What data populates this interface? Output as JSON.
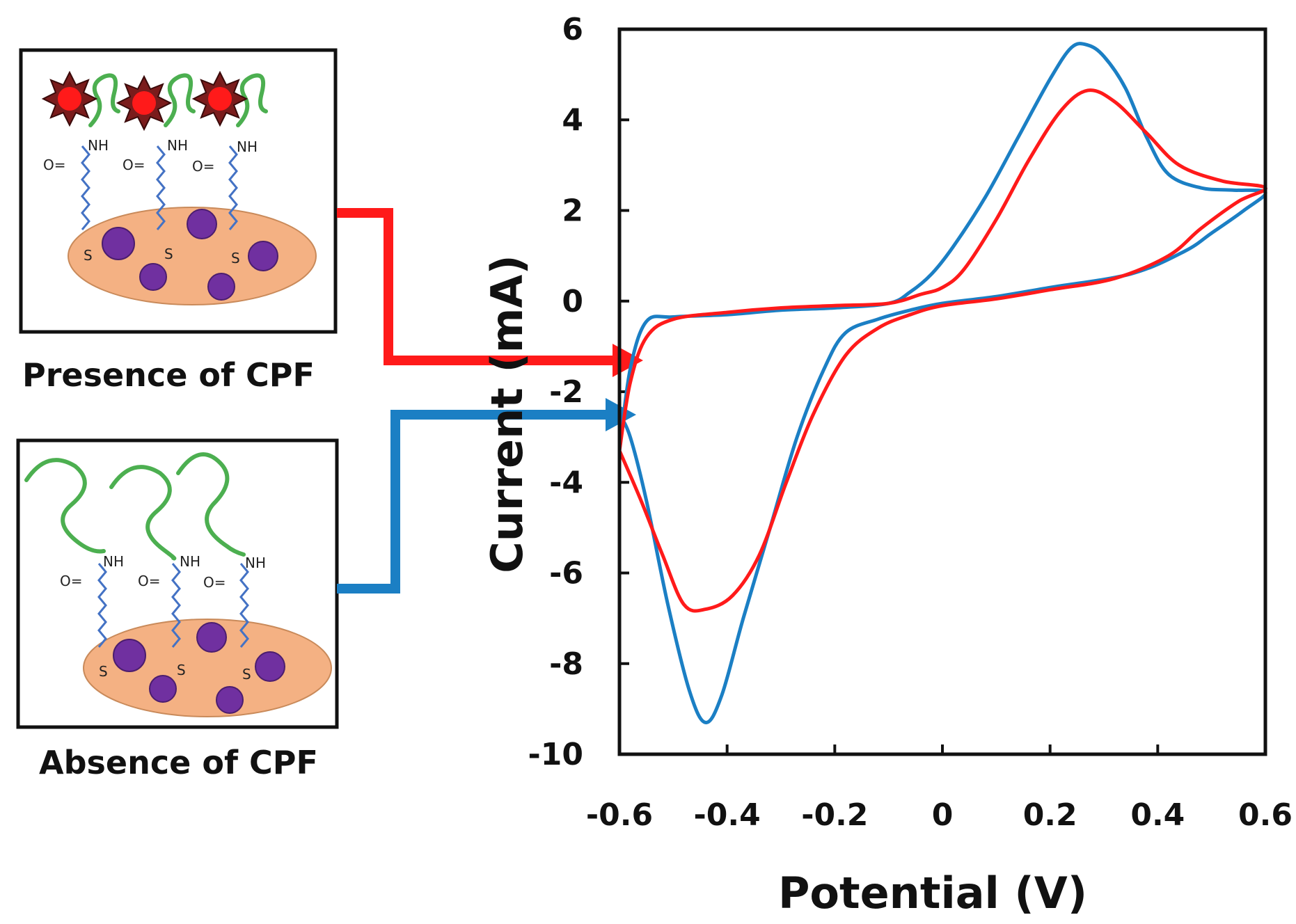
{
  "panels": {
    "presence": {
      "caption": "Presence of CPF",
      "nh": "NH",
      "o": "O=",
      "s": "S"
    },
    "absence": {
      "caption": "Absence of CPF",
      "nh": "NH",
      "o": "O=",
      "s": "S"
    }
  },
  "colors": {
    "presence_red": "#ff1a1a",
    "absence_blue": "#1b7fc4",
    "particle": "#f4b183",
    "cluster": "#7030a0",
    "strand": "#4caf50",
    "linker": "#4472c4"
  },
  "chart_data": {
    "type": "line",
    "title": "",
    "xlabel": "Potential (V)",
    "ylabel": "Current (mA)",
    "xlim": [
      -0.6,
      0.6
    ],
    "ylim": [
      -10,
      6
    ],
    "xticks": [
      -0.6,
      -0.4,
      -0.2,
      0,
      0.2,
      0.4,
      0.6
    ],
    "xtick_labels": [
      "-0.6",
      "-0.4",
      "-0.2",
      "0",
      "0.2",
      "0.4",
      "0.6"
    ],
    "yticks": [
      6,
      4,
      2,
      0,
      -2,
      -4,
      -6,
      -8,
      -10
    ],
    "ytick_labels": [
      "6",
      "4",
      "2",
      "0",
      "-2",
      "-4",
      "-6",
      "-8",
      "-10"
    ],
    "grid": false,
    "series": [
      {
        "name": "Absence of CPF",
        "color": "#1b7fc4",
        "points": [
          [
            -0.6,
            -3.3
          ],
          [
            -0.58,
            -1.5
          ],
          [
            -0.55,
            -0.45
          ],
          [
            -0.5,
            -0.35
          ],
          [
            -0.4,
            -0.3
          ],
          [
            -0.3,
            -0.2
          ],
          [
            -0.2,
            -0.15
          ],
          [
            -0.1,
            -0.05
          ],
          [
            -0.06,
            0.2
          ],
          [
            -0.02,
            0.6
          ],
          [
            0.02,
            1.2
          ],
          [
            0.08,
            2.3
          ],
          [
            0.14,
            3.6
          ],
          [
            0.2,
            4.9
          ],
          [
            0.24,
            5.6
          ],
          [
            0.27,
            5.65
          ],
          [
            0.3,
            5.4
          ],
          [
            0.34,
            4.7
          ],
          [
            0.38,
            3.6
          ],
          [
            0.42,
            2.8
          ],
          [
            0.48,
            2.5
          ],
          [
            0.54,
            2.45
          ],
          [
            0.6,
            2.4
          ],
          [
            0.56,
            2.0
          ],
          [
            0.5,
            1.5
          ],
          [
            0.45,
            1.1
          ],
          [
            0.35,
            0.6
          ],
          [
            0.2,
            0.3
          ],
          [
            0.1,
            0.1
          ],
          [
            0,
            -0.05
          ],
          [
            -0.06,
            -0.2
          ],
          [
            -0.12,
            -0.4
          ],
          [
            -0.18,
            -0.7
          ],
          [
            -0.22,
            -1.5
          ],
          [
            -0.27,
            -3.0
          ],
          [
            -0.32,
            -5.0
          ],
          [
            -0.37,
            -7.0
          ],
          [
            -0.41,
            -8.7
          ],
          [
            -0.44,
            -9.3
          ],
          [
            -0.47,
            -8.6
          ],
          [
            -0.51,
            -6.7
          ],
          [
            -0.55,
            -4.4
          ],
          [
            -0.58,
            -3.0
          ],
          [
            -0.6,
            -2.5
          ]
        ]
      },
      {
        "name": "Presence of CPF",
        "color": "#ff1a1a",
        "points": [
          [
            -0.6,
            -3.3
          ],
          [
            -0.58,
            -1.8
          ],
          [
            -0.55,
            -0.8
          ],
          [
            -0.5,
            -0.4
          ],
          [
            -0.4,
            -0.25
          ],
          [
            -0.3,
            -0.15
          ],
          [
            -0.2,
            -0.1
          ],
          [
            -0.1,
            -0.05
          ],
          [
            -0.04,
            0.15
          ],
          [
            0,
            0.3
          ],
          [
            0.04,
            0.7
          ],
          [
            0.1,
            1.8
          ],
          [
            0.16,
            3.1
          ],
          [
            0.22,
            4.2
          ],
          [
            0.27,
            4.65
          ],
          [
            0.32,
            4.4
          ],
          [
            0.38,
            3.7
          ],
          [
            0.44,
            3.0
          ],
          [
            0.52,
            2.65
          ],
          [
            0.6,
            2.5
          ],
          [
            0.55,
            2.2
          ],
          [
            0.48,
            1.6
          ],
          [
            0.42,
            1.0
          ],
          [
            0.32,
            0.5
          ],
          [
            0.2,
            0.25
          ],
          [
            0.1,
            0.05
          ],
          [
            0,
            -0.1
          ],
          [
            -0.06,
            -0.3
          ],
          [
            -0.12,
            -0.6
          ],
          [
            -0.18,
            -1.2
          ],
          [
            -0.24,
            -2.5
          ],
          [
            -0.29,
            -4.0
          ],
          [
            -0.34,
            -5.6
          ],
          [
            -0.39,
            -6.5
          ],
          [
            -0.44,
            -6.8
          ],
          [
            -0.48,
            -6.7
          ],
          [
            -0.52,
            -5.6
          ],
          [
            -0.56,
            -4.4
          ],
          [
            -0.6,
            -3.3
          ]
        ]
      }
    ],
    "legend": "none"
  }
}
